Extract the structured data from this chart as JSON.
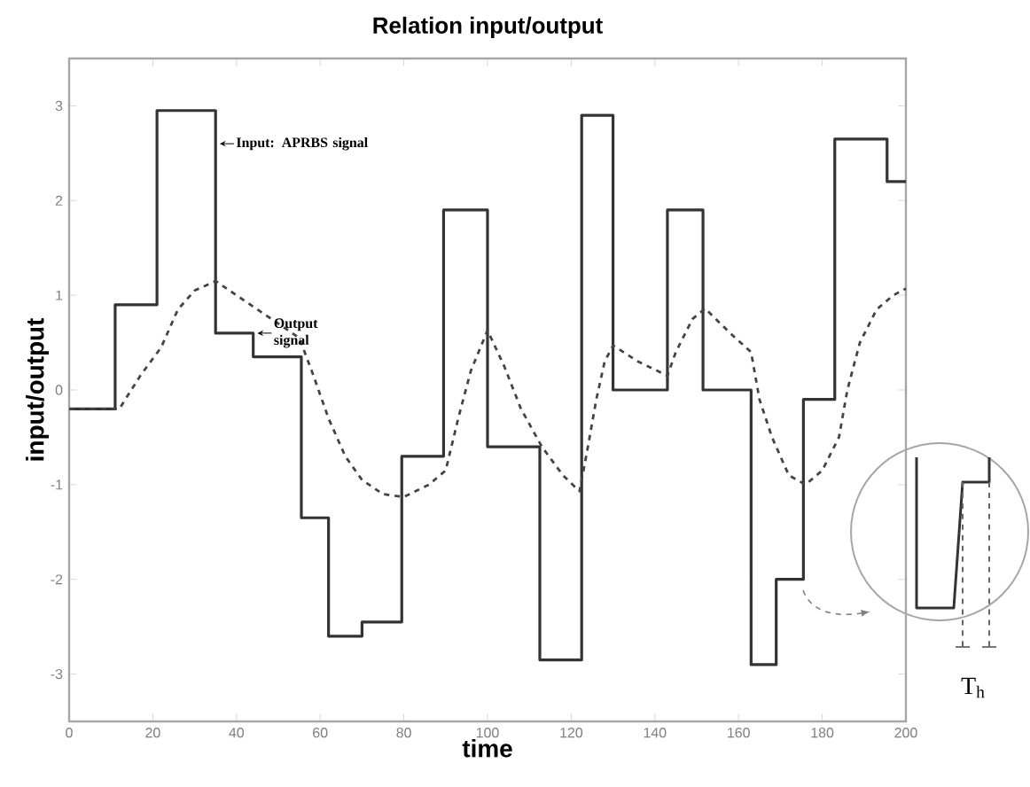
{
  "chart_data": {
    "type": "line",
    "title": "Relation input/output",
    "xlabel": "time",
    "ylabel": "input/output",
    "xlim": [
      0,
      200
    ],
    "ylim": [
      -3.5,
      3.5
    ],
    "xticks": [
      0,
      20,
      40,
      60,
      80,
      100,
      120,
      140,
      160,
      180,
      200
    ],
    "yticks": [
      -3,
      -2,
      -1,
      0,
      1,
      2,
      3
    ],
    "series": [
      {
        "type": "step",
        "color": "#333333",
        "line_style": "solid",
        "x": [
          0,
          11,
          21,
          35,
          44,
          55.5,
          62,
          70,
          79.5,
          89.5,
          100,
          112.5,
          122.5,
          130,
          143,
          151.5,
          163,
          169,
          175.5,
          183,
          195.5,
          200
        ],
        "values": [
          -0.2,
          0.9,
          2.95,
          0.6,
          0.35,
          -1.35,
          -2.6,
          -2.45,
          -0.7,
          1.9,
          -0.6,
          -2.85,
          2.9,
          0.0,
          1.9,
          0.0,
          -2.9,
          -2.0,
          -0.1,
          2.65,
          2.2,
          2.2
        ]
      },
      {
        "color": "#444444",
        "line_style": "dashed",
        "x": [
          0,
          12,
          17,
          22,
          26,
          30,
          35,
          45,
          55,
          58,
          62,
          66,
          70,
          75,
          80,
          86,
          90,
          93,
          96,
          100,
          104,
          108,
          113,
          118,
          122,
          124,
          126,
          128,
          130,
          136,
          143,
          145,
          149,
          152,
          158,
          163,
          165,
          168,
          172,
          176,
          180,
          184,
          186,
          189,
          193,
          197,
          200
        ],
        "values": [
          -0.2,
          -0.2,
          0.15,
          0.45,
          0.85,
          1.05,
          1.15,
          0.85,
          0.55,
          0.2,
          -0.3,
          -0.7,
          -0.95,
          -1.1,
          -1.13,
          -1.0,
          -0.85,
          -0.3,
          0.2,
          0.63,
          0.25,
          -0.2,
          -0.6,
          -0.9,
          -1.07,
          -0.6,
          -0.1,
          0.3,
          0.47,
          0.3,
          0.15,
          0.4,
          0.75,
          0.86,
          0.6,
          0.4,
          -0.1,
          -0.5,
          -0.9,
          -1.0,
          -0.85,
          -0.5,
          0.0,
          0.5,
          0.85,
          1.0,
          1.07
        ]
      }
    ],
    "annotations": [
      {
        "text": "Input: APRBS signal",
        "x": 36,
        "y": 2.6
      },
      {
        "text": "Output signal",
        "x": 45,
        "y": 0.6
      },
      "T$_{h}$"
    ]
  }
}
